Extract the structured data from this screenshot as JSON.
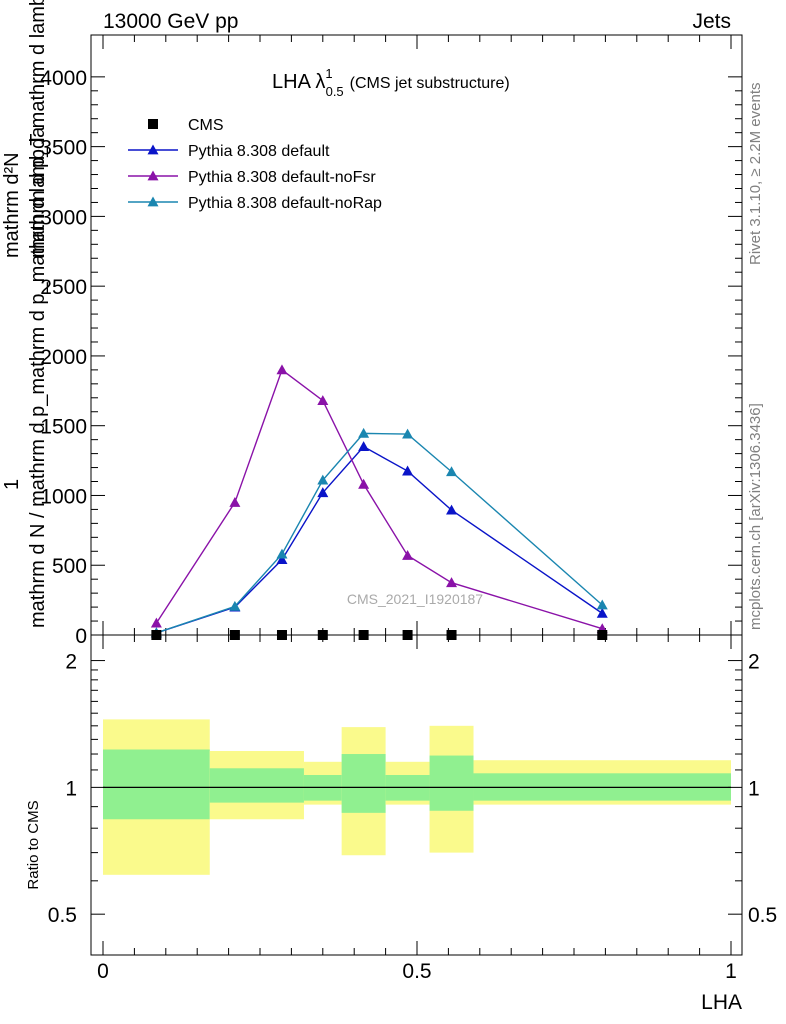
{
  "header": {
    "left": "13000 GeV pp",
    "right": "Jets"
  },
  "side_text": {
    "rivet": "Rivet 3.1.10, ≥ 2.2M events",
    "mcplots": "mcplots.cern.ch [arXiv:1306.3436]"
  },
  "watermark": "CMS_2021_I1920187",
  "chart_data": {
    "type": "line",
    "title_main": "LHA λ",
    "title_sup": "1",
    "title_sub": "0.5",
    "title_rest": "(CMS jet substructure)",
    "ylabel_top": "1",
    "ylabel_den": "mathrm d N / mathrm d p_mathrm d p_mathrm d lambda",
    "ylabel_right": "mathrm d²N",
    "ylabel_right_den": "mathrm d p_T mathrm d lambda",
    "xlabel": "LHA",
    "xlim": [
      0,
      1
    ],
    "ylim": [
      0,
      4300
    ],
    "x_ticks": [
      "0",
      "0.5",
      "1"
    ],
    "y_ticks": [
      0,
      500,
      1000,
      1500,
      2000,
      2500,
      3000,
      3500,
      4000
    ],
    "y_tick_labels": [
      "0",
      "500",
      "1000",
      "1500",
      "2000",
      "2500",
      "3000",
      "3500",
      "4000"
    ],
    "legend": [
      {
        "name": "CMS",
        "color": "#000000",
        "marker": "square"
      },
      {
        "name": "Pythia 8.308 default",
        "color": "#0a14c8",
        "marker": "triangle"
      },
      {
        "name": "Pythia 8.308 default-noFsr",
        "color": "#8a12a8",
        "marker": "triangle"
      },
      {
        "name": "Pythia 8.308 default-noRap",
        "color": "#1a86b0",
        "marker": "triangle"
      }
    ],
    "cms": {
      "x": [
        0.085,
        0.21,
        0.285,
        0.35,
        0.415,
        0.485,
        0.555,
        0.795
      ],
      "y": [
        0,
        0,
        0,
        0,
        0,
        0,
        0,
        0
      ]
    },
    "series": [
      {
        "name": "Pythia 8.308 default",
        "color": "#0a14c8",
        "x": [
          0.085,
          0.21,
          0.285,
          0.35,
          0.415,
          0.485,
          0.555,
          0.795
        ],
        "y": [
          15,
          200,
          540,
          1020,
          1350,
          1175,
          895,
          155
        ]
      },
      {
        "name": "Pythia 8.308 default-noFsr",
        "color": "#8a12a8",
        "x": [
          0.085,
          0.21,
          0.285,
          0.35,
          0.415,
          0.485,
          0.555,
          0.795
        ],
        "y": [
          85,
          950,
          1900,
          1680,
          1080,
          570,
          375,
          45
        ]
      },
      {
        "name": "Pythia 8.308 default-noRap",
        "color": "#1a86b0",
        "x": [
          0.085,
          0.21,
          0.285,
          0.35,
          0.415,
          0.485,
          0.555,
          0.795
        ],
        "y": [
          15,
          205,
          580,
          1110,
          1445,
          1440,
          1170,
          215
        ]
      }
    ],
    "ratio": {
      "ylabel": "Ratio to CMS",
      "ylim": [
        0.4,
        2.3
      ],
      "y_ticks": [
        0.5,
        1,
        2
      ],
      "y_tick_labels": [
        "0.5",
        "1",
        "2"
      ],
      "bands": [
        {
          "x0": 0.0,
          "x1": 0.17,
          "inner": [
            0.84,
            1.23
          ],
          "outer": [
            0.62,
            1.45
          ]
        },
        {
          "x0": 0.17,
          "x1": 0.32,
          "inner": [
            0.92,
            1.11
          ],
          "outer": [
            0.84,
            1.22
          ]
        },
        {
          "x0": 0.32,
          "x1": 0.38,
          "inner": [
            0.93,
            1.07
          ],
          "outer": [
            0.91,
            1.15
          ]
        },
        {
          "x0": 0.38,
          "x1": 0.45,
          "inner": [
            0.87,
            1.2
          ],
          "outer": [
            0.69,
            1.39
          ]
        },
        {
          "x0": 0.45,
          "x1": 0.52,
          "inner": [
            0.93,
            1.07
          ],
          "outer": [
            0.91,
            1.15
          ]
        },
        {
          "x0": 0.52,
          "x1": 0.59,
          "inner": [
            0.88,
            1.19
          ],
          "outer": [
            0.7,
            1.4
          ]
        },
        {
          "x0": 0.59,
          "x1": 1.0,
          "inner": [
            0.93,
            1.08
          ],
          "outer": [
            0.91,
            1.16
          ]
        }
      ],
      "inner_color": "#90f090",
      "outer_color": "#fafa8c"
    }
  }
}
